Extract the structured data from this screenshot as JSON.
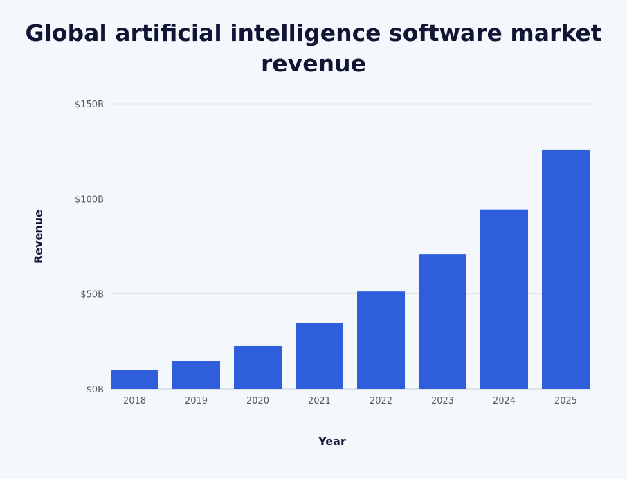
{
  "chart_data": {
    "type": "bar",
    "title": "Global artificial intelligence software market revenue",
    "xlabel": "Year",
    "ylabel": "Revenue",
    "categories": [
      "2018",
      "2019",
      "2020",
      "2021",
      "2022",
      "2023",
      "2024",
      "2025"
    ],
    "values": [
      10.1,
      14.69,
      22.59,
      34.87,
      51.27,
      70.94,
      94.41,
      126
    ],
    "unit": "billion USD",
    "ylim": [
      0,
      150
    ],
    "yticks": [
      0,
      50,
      100,
      150
    ],
    "ytick_labels": [
      "$0B",
      "$50B",
      "$100B",
      "$150B"
    ],
    "grid": true,
    "bar_color": "#2f5edc",
    "background": "#f4f8fd"
  }
}
